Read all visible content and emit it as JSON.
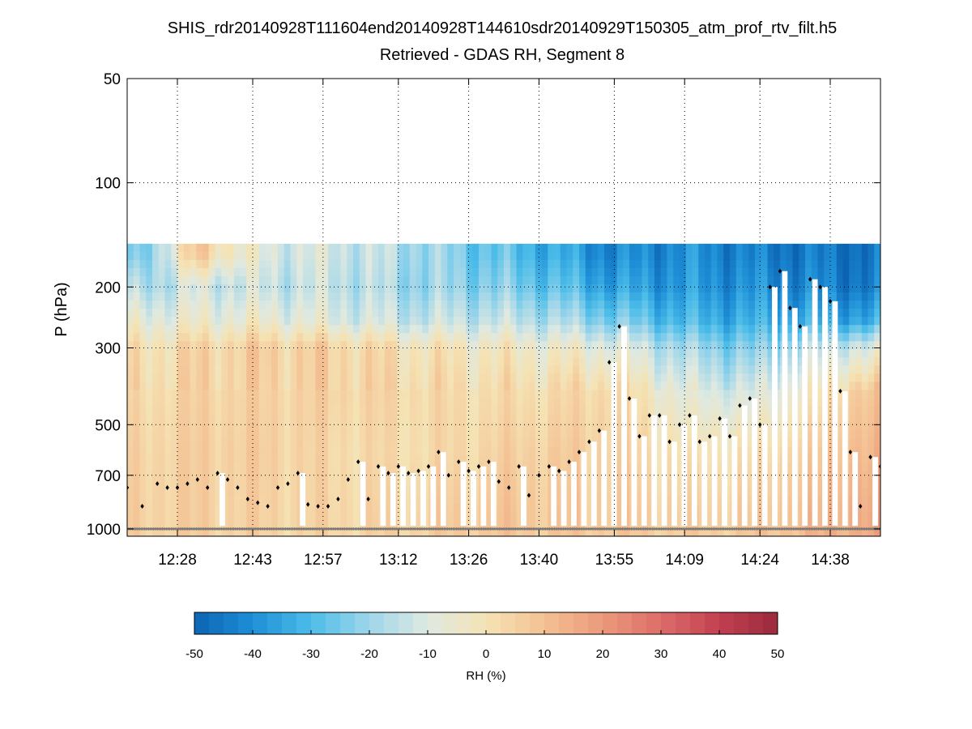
{
  "chart_data": {
    "type": "heatmap",
    "title": "SHIS_rdr20140928T111604end20140928T144610sdr20140929T150305_atm_prof_rtv_filt.h5",
    "subtitle": "Retrieved - GDAS RH, Segment 8",
    "ylabel": "P (hPa)",
    "yscale": "log",
    "yreverse": true,
    "ylim": [
      50,
      1050
    ],
    "yticks": [
      50,
      100,
      200,
      300,
      500,
      700,
      1000
    ],
    "xlim_minutes": [
      738,
      888
    ],
    "xticks": [
      {
        "minute": 748,
        "label": "12:28"
      },
      {
        "minute": 763,
        "label": "12:43"
      },
      {
        "minute": 777,
        "label": "12:57"
      },
      {
        "minute": 792,
        "label": "13:12"
      },
      {
        "minute": 806,
        "label": "13:26"
      },
      {
        "minute": 820,
        "label": "13:40"
      },
      {
        "minute": 835,
        "label": "13:55"
      },
      {
        "minute": 849,
        "label": "14:09"
      },
      {
        "minute": 864,
        "label": "14:24"
      },
      {
        "minute": 878,
        "label": "14:38"
      }
    ],
    "data_top_pressure": 150,
    "colorbar": {
      "label": "RH (%)",
      "range": [
        -50,
        50
      ],
      "ticks": [
        "-50",
        "-40",
        "-30",
        "-20",
        "-10",
        "0",
        "10",
        "20",
        "30",
        "40",
        "50"
      ],
      "colors": [
        "#0c63b2",
        "#1e8fd7",
        "#4cbde9",
        "#9fd6ea",
        "#dfe9e1",
        "#f5e3b4",
        "#f4c193",
        "#eb9a7b",
        "#dd6d6a",
        "#c1404f",
        "#9b2a3d"
      ]
    },
    "grid": true,
    "series": [
      {
        "name": "Retrieved - GDAS RH difference",
        "description": "time-pressure field, RH difference (%)",
        "profiles": [
          {
            "minute": 740,
            "values": [
              -28,
              -18,
              -8,
              0,
              2,
              4,
              5
            ]
          },
          {
            "minute": 752,
            "values": [
              8,
              -12,
              -6,
              4,
              5,
              6,
              6
            ]
          },
          {
            "minute": 765,
            "values": [
              -10,
              -14,
              -6,
              6,
              5,
              6,
              5
            ]
          },
          {
            "minute": 780,
            "values": [
              -12,
              -14,
              -10,
              5,
              5,
              3,
              4
            ]
          },
          {
            "minute": 795,
            "values": [
              -18,
              -20,
              -14,
              0,
              3,
              2,
              5
            ]
          },
          {
            "minute": 808,
            "values": [
              -26,
              -22,
              -14,
              -2,
              2,
              4,
              8
            ]
          },
          {
            "minute": 820,
            "values": [
              -32,
              -26,
              -16,
              -4,
              2,
              6,
              8
            ]
          },
          {
            "minute": 835,
            "values": [
              -42,
              -36,
              -24,
              -8,
              4,
              6,
              8
            ]
          },
          {
            "minute": 850,
            "values": [
              -40,
              -38,
              -32,
              -20,
              -10,
              0,
              6
            ]
          },
          {
            "minute": 864,
            "values": [
              -44,
              -40,
              -34,
              -24,
              -12,
              2,
              8
            ]
          },
          {
            "minute": 884,
            "values": [
              -46,
              -44,
              -34,
              -10,
              8,
              12,
              16
            ]
          }
        ],
        "profile_levels_hPa": [
          160,
          200,
          250,
          300,
          400,
          600,
          900
        ]
      },
      {
        "name": "Cloud top pressure",
        "style": "black diamond markers",
        "x_minutes": [
          738,
          741,
          744,
          746,
          748,
          750,
          752,
          754,
          756,
          758,
          760,
          762,
          764,
          766,
          768,
          770,
          772,
          774,
          776,
          778,
          780,
          782,
          784,
          786,
          788,
          790,
          792,
          794,
          796,
          798,
          800,
          802,
          804,
          806,
          808,
          810,
          812,
          814,
          816,
          818,
          820,
          822,
          824,
          826,
          828,
          830,
          832,
          834,
          836,
          838,
          840,
          842,
          844,
          846,
          848,
          850,
          852,
          854,
          856,
          858,
          860,
          862,
          864,
          866,
          868,
          870,
          872,
          874,
          876,
          878,
          880,
          882,
          884,
          886,
          888
        ],
        "y_hPa": [
          760,
          860,
          740,
          760,
          760,
          740,
          720,
          760,
          690,
          720,
          760,
          820,
          840,
          860,
          760,
          740,
          690,
          850,
          860,
          860,
          820,
          720,
          640,
          820,
          660,
          690,
          660,
          690,
          680,
          660,
          600,
          700,
          640,
          680,
          660,
          640,
          730,
          760,
          660,
          800,
          700,
          660,
          680,
          640,
          600,
          560,
          520,
          330,
          260,
          420,
          540,
          470,
          470,
          560,
          500,
          470,
          560,
          540,
          480,
          540,
          440,
          420,
          500,
          200,
          180,
          230,
          260,
          190,
          200,
          220,
          400,
          600,
          860,
          620,
          660
        ]
      },
      {
        "name": "Surface pressure",
        "style": "grey diamond markers",
        "y_hPa": 1000
      }
    ]
  }
}
